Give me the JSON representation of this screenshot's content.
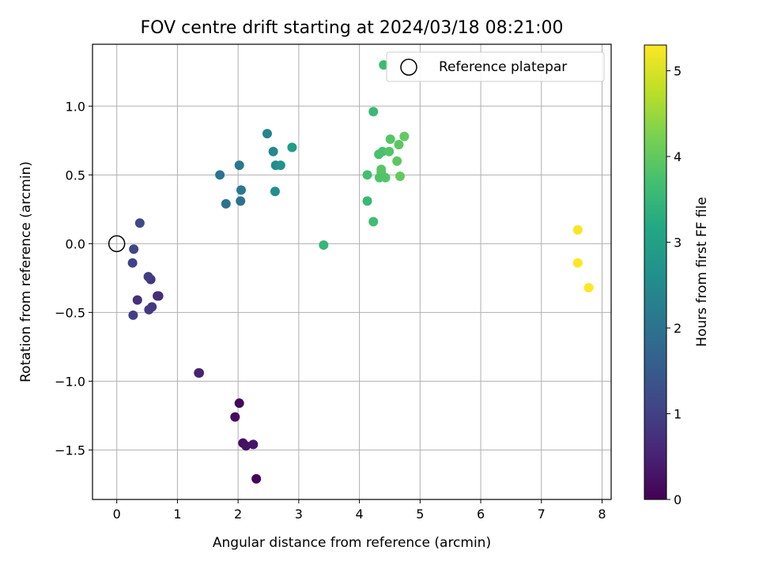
{
  "chart_data": {
    "type": "scatter",
    "title": "FOV centre drift starting at 2024/03/18 08:21:00",
    "xlabel": "Angular distance from reference (arcmin)",
    "ylabel": "Rotation from reference (arcmin)",
    "xlim": [
      -0.4,
      8.15
    ],
    "ylim": [
      -1.86,
      1.45
    ],
    "xticks": [
      "0",
      "1",
      "2",
      "3",
      "4",
      "5",
      "6",
      "7",
      "8"
    ],
    "yticks": [
      "−1.5",
      "−1.0",
      "−0.5",
      "0.0",
      "0.5",
      "1.0"
    ],
    "grid": true,
    "legend_position": "top-right",
    "reference": {
      "label": "Reference platepar",
      "x": 0.0,
      "y": 0.0
    },
    "colorbar": {
      "label": "Hours from first FF file",
      "range": [
        0,
        5.3
      ],
      "ticks": [
        "0",
        "1",
        "2",
        "3",
        "4",
        "5"
      ],
      "colormap": "viridis"
    },
    "points": [
      {
        "x": 2.3,
        "y": -1.71,
        "hours": 0.05
      },
      {
        "x": 2.02,
        "y": -1.16,
        "hours": 0.1
      },
      {
        "x": 1.95,
        "y": -1.26,
        "hours": 0.15
      },
      {
        "x": 2.08,
        "y": -1.45,
        "hours": 0.2
      },
      {
        "x": 2.13,
        "y": -1.47,
        "hours": 0.25
      },
      {
        "x": 2.25,
        "y": -1.46,
        "hours": 0.3
      },
      {
        "x": 1.35,
        "y": -0.94,
        "hours": 0.45
      },
      {
        "x": 1.36,
        "y": -0.94,
        "hours": 0.5
      },
      {
        "x": 0.67,
        "y": -0.38,
        "hours": 0.65
      },
      {
        "x": 0.69,
        "y": -0.38,
        "hours": 0.7
      },
      {
        "x": 0.34,
        "y": -0.41,
        "hours": 0.75
      },
      {
        "x": 0.56,
        "y": -0.26,
        "hours": 0.8
      },
      {
        "x": 0.58,
        "y": -0.46,
        "hours": 0.85
      },
      {
        "x": 0.53,
        "y": -0.48,
        "hours": 0.9
      },
      {
        "x": 0.52,
        "y": -0.24,
        "hours": 0.95
      },
      {
        "x": 0.27,
        "y": -0.52,
        "hours": 1.0
      },
      {
        "x": 0.26,
        "y": -0.14,
        "hours": 1.05
      },
      {
        "x": 0.28,
        "y": -0.04,
        "hours": 1.1
      },
      {
        "x": 0.38,
        "y": 0.15,
        "hours": 1.15
      },
      {
        "x": 2.04,
        "y": 0.31,
        "hours": 2.0
      },
      {
        "x": 1.8,
        "y": 0.29,
        "hours": 2.0
      },
      {
        "x": 1.7,
        "y": 0.5,
        "hours": 2.05
      },
      {
        "x": 2.02,
        "y": 0.57,
        "hours": 2.1
      },
      {
        "x": 2.05,
        "y": 0.39,
        "hours": 2.15
      },
      {
        "x": 2.48,
        "y": 0.8,
        "hours": 2.35
      },
      {
        "x": 2.58,
        "y": 0.67,
        "hours": 2.45
      },
      {
        "x": 2.62,
        "y": 0.57,
        "hours": 2.55
      },
      {
        "x": 2.61,
        "y": 0.38,
        "hours": 2.6
      },
      {
        "x": 2.7,
        "y": 0.57,
        "hours": 2.7
      },
      {
        "x": 2.89,
        "y": 0.7,
        "hours": 2.9
      },
      {
        "x": 3.41,
        "y": -0.01,
        "hours": 3.5
      },
      {
        "x": 4.13,
        "y": 0.31,
        "hours": 3.55
      },
      {
        "x": 4.23,
        "y": 0.96,
        "hours": 3.55
      },
      {
        "x": 4.4,
        "y": 1.3,
        "hours": 3.6
      },
      {
        "x": 4.23,
        "y": 0.16,
        "hours": 3.65
      },
      {
        "x": 4.13,
        "y": 0.5,
        "hours": 3.7
      },
      {
        "x": 4.32,
        "y": 0.65,
        "hours": 3.75
      },
      {
        "x": 4.38,
        "y": 0.67,
        "hours": 3.75
      },
      {
        "x": 4.33,
        "y": 0.48,
        "hours": 3.8
      },
      {
        "x": 4.36,
        "y": 0.52,
        "hours": 3.8
      },
      {
        "x": 4.43,
        "y": 0.48,
        "hours": 3.85
      },
      {
        "x": 4.49,
        "y": 0.67,
        "hours": 3.85
      },
      {
        "x": 4.51,
        "y": 0.76,
        "hours": 3.9
      },
      {
        "x": 4.36,
        "y": 0.54,
        "hours": 3.9
      },
      {
        "x": 4.62,
        "y": 0.6,
        "hours": 3.95
      },
      {
        "x": 4.65,
        "y": 0.72,
        "hours": 3.95
      },
      {
        "x": 4.67,
        "y": 0.49,
        "hours": 4.0
      },
      {
        "x": 4.74,
        "y": 0.78,
        "hours": 4.0
      },
      {
        "x": 7.6,
        "y": 0.1,
        "hours": 5.25
      },
      {
        "x": 7.6,
        "y": -0.14,
        "hours": 5.28
      },
      {
        "x": 7.78,
        "y": -0.32,
        "hours": 5.3
      }
    ]
  }
}
